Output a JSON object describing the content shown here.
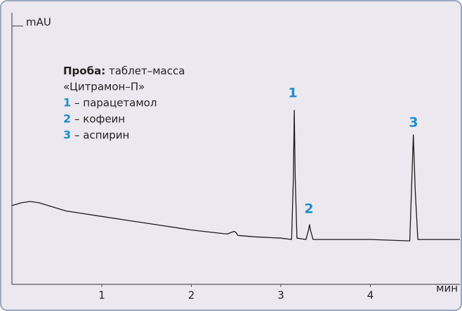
{
  "chart_data": {
    "type": "line",
    "y_label": "mAU",
    "x_label": "мин",
    "sample": {
      "label": "Проба:",
      "lines": [
        "таблет–масса",
        "«Цитрамон–П»"
      ]
    },
    "peaks": [
      {
        "number": "1",
        "text": "– парацетамол"
      },
      {
        "number": "2",
        "text": "– кофеин"
      },
      {
        "number": "3",
        "text": "– аспирин"
      }
    ],
    "x": [
      0,
      0.1,
      0.2,
      0.3,
      0.4,
      0.6,
      0.8,
      1.0,
      1.3,
      1.6,
      2.0,
      2.4,
      2.48,
      2.5,
      2.52,
      2.7,
      3.0,
      3.12,
      3.14,
      3.15,
      3.16,
      3.18,
      3.28,
      3.31,
      3.32,
      3.33,
      3.36,
      3.6,
      4.0,
      4.44,
      4.46,
      4.48,
      4.5,
      4.53,
      4.7,
      5.0
    ],
    "values": [
      29,
      30,
      30.5,
      30,
      29,
      27,
      26,
      25,
      23.5,
      22,
      20,
      18.5,
      19.5,
      19,
      18,
      17.5,
      17,
      16.5,
      40,
      64,
      40,
      17,
      16.5,
      20,
      22,
      20,
      16.5,
      16.5,
      16.5,
      16,
      35,
      55,
      35,
      16.5,
      16.5,
      16.5
    ],
    "color": "#1a1a1a",
    "xlim": [
      0,
      5
    ],
    "ylim": [
      0,
      100
    ],
    "xticks": [
      1,
      2,
      3,
      4
    ]
  }
}
